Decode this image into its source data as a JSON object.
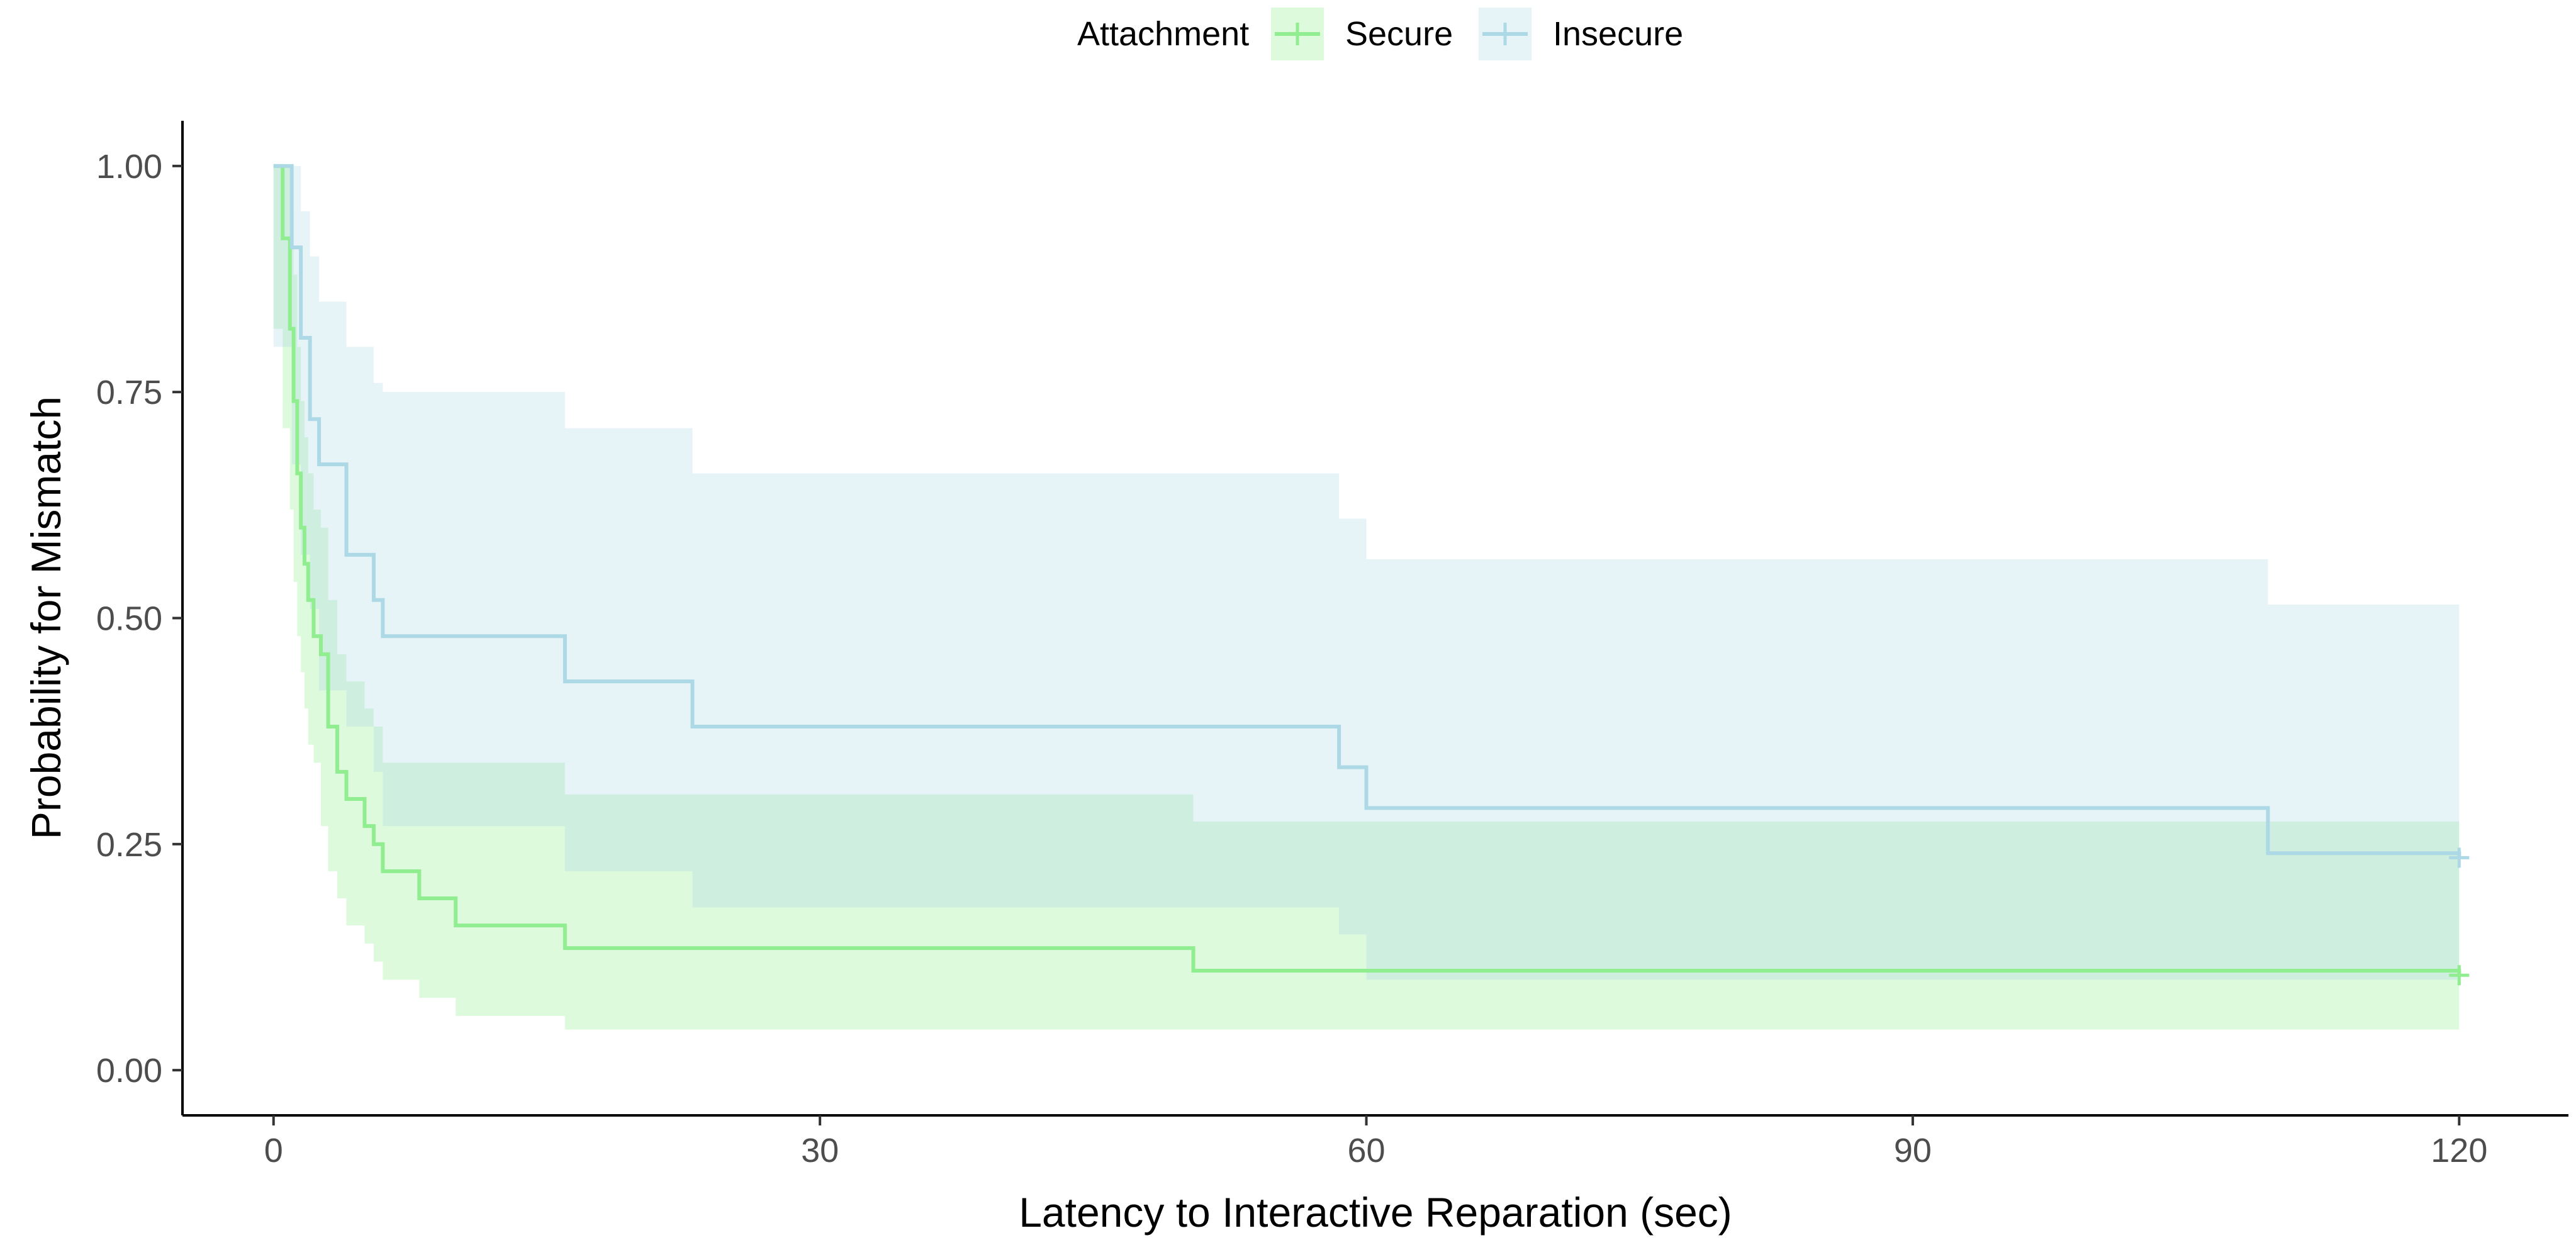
{
  "chart_data": {
    "type": "line",
    "subtype": "kaplan-meier step curve with confidence bands",
    "xlabel": "Latency to Interactive Reparation (sec)",
    "ylabel": "Probability for Mismatch",
    "xlim": [
      -5,
      126
    ],
    "ylim": [
      -0.05,
      1.05
    ],
    "x_ticks": [
      0,
      30,
      60,
      90,
      120
    ],
    "x_tick_labels": [
      "0",
      "30",
      "60",
      "90",
      "120"
    ],
    "y_ticks": [
      0,
      0.25,
      0.5,
      0.75,
      1.0
    ],
    "y_tick_labels": [
      "0.00",
      "0.25",
      "0.50",
      "0.75",
      "1.00"
    ],
    "grid": false,
    "legend": {
      "title": "Attachment",
      "position": "top",
      "entries": [
        "Secure",
        "Insecure"
      ]
    },
    "series": [
      {
        "name": "Secure",
        "color": "#90EE90",
        "band_color": "#90EE90",
        "x": [
          0,
          0.5,
          0.9,
          1.1,
          1.3,
          1.5,
          1.7,
          1.9,
          2.2,
          2.6,
          3.0,
          3.5,
          4.0,
          5.0,
          5.5,
          6.0,
          8.0,
          10.0,
          16.0,
          50.5,
          120.0
        ],
        "y": [
          1.0,
          0.92,
          0.82,
          0.74,
          0.66,
          0.6,
          0.56,
          0.52,
          0.48,
          0.46,
          0.38,
          0.33,
          0.3,
          0.27,
          0.25,
          0.22,
          0.19,
          0.16,
          0.135,
          0.11,
          0.105
        ],
        "lower": [
          0.9,
          0.82,
          0.71,
          0.62,
          0.54,
          0.48,
          0.44,
          0.4,
          0.36,
          0.34,
          0.27,
          0.22,
          0.19,
          0.16,
          0.14,
          0.12,
          0.1,
          0.08,
          0.06,
          0.045,
          0.045
        ],
        "upper": [
          1.0,
          1.0,
          0.95,
          0.88,
          0.8,
          0.74,
          0.7,
          0.66,
          0.62,
          0.6,
          0.52,
          0.46,
          0.43,
          0.4,
          0.38,
          0.34,
          0.34,
          0.34,
          0.305,
          0.275,
          0.275
        ],
        "censor_x": [
          120
        ],
        "censor_y": [
          0.105
        ]
      },
      {
        "name": "Insecure",
        "color": "#ADD8E6",
        "band_color": "#ADD8E6",
        "x": [
          0,
          1.0,
          1.5,
          2.0,
          2.5,
          4.0,
          5.5,
          6.0,
          16.0,
          23.0,
          58.5,
          60.0,
          109.5,
          120.0
        ],
        "y": [
          1.0,
          0.91,
          0.81,
          0.72,
          0.67,
          0.57,
          0.52,
          0.48,
          0.43,
          0.38,
          0.335,
          0.29,
          0.24,
          0.235
        ],
        "lower": [
          0.84,
          0.8,
          0.67,
          0.57,
          0.51,
          0.42,
          0.38,
          0.33,
          0.27,
          0.22,
          0.18,
          0.15,
          0.1,
          0.1
        ],
        "upper": [
          1.0,
          1.0,
          0.95,
          0.9,
          0.85,
          0.8,
          0.76,
          0.75,
          0.71,
          0.66,
          0.61,
          0.565,
          0.515,
          0.515
        ],
        "censor_x": [
          120
        ],
        "censor_y": [
          0.235
        ]
      }
    ]
  }
}
